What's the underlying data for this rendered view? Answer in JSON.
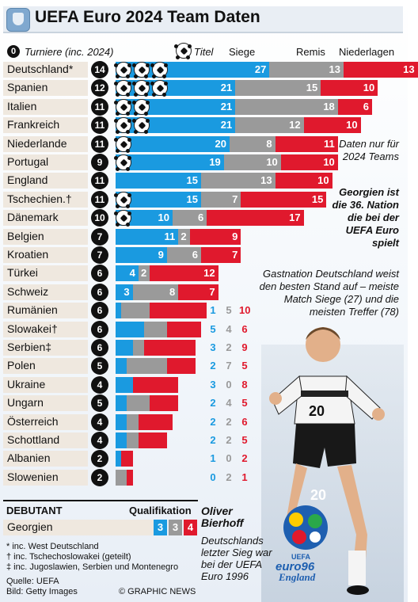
{
  "title": "UEFA Euro 2024 Team Daten",
  "header": {
    "tournaments_badge": "0",
    "tournaments_label": "Turniere (inc. 2024)",
    "titles_label": "Titel",
    "wins_label": "Siege",
    "draws_label": "Remis",
    "losses_label": "Niederlagen"
  },
  "colors": {
    "wins": "#1a9ae0",
    "draws": "#9a9a9a",
    "losses": "#e0192d",
    "label_bg": "#efe8df"
  },
  "chart_data": {
    "type": "bar",
    "stacked": true,
    "orientation": "horizontal",
    "title": "UEFA Euro 2024 Team Daten",
    "series_names": [
      "Siege",
      "Remis",
      "Niederlagen"
    ],
    "teams": [
      {
        "name": "Deutschland*",
        "tournaments": 14,
        "titles": 3,
        "wins": 27,
        "draws": 13,
        "losses": 13
      },
      {
        "name": "Spanien",
        "tournaments": 12,
        "titles": 3,
        "wins": 21,
        "draws": 15,
        "losses": 10
      },
      {
        "name": "Italien",
        "tournaments": 11,
        "titles": 2,
        "wins": 21,
        "draws": 18,
        "losses": 6
      },
      {
        "name": "Frankreich",
        "tournaments": 11,
        "titles": 2,
        "wins": 21,
        "draws": 12,
        "losses": 10
      },
      {
        "name": "Niederlande",
        "tournaments": 11,
        "titles": 1,
        "wins": 20,
        "draws": 8,
        "losses": 11
      },
      {
        "name": "Portugal",
        "tournaments": 9,
        "titles": 1,
        "wins": 19,
        "draws": 10,
        "losses": 10
      },
      {
        "name": "England",
        "tournaments": 11,
        "titles": 0,
        "wins": 15,
        "draws": 13,
        "losses": 10
      },
      {
        "name": "Tschechien.†",
        "tournaments": 11,
        "titles": 1,
        "wins": 15,
        "draws": 7,
        "losses": 15
      },
      {
        "name": "Dänemark",
        "tournaments": 10,
        "titles": 1,
        "wins": 10,
        "draws": 6,
        "losses": 17
      },
      {
        "name": "Belgien",
        "tournaments": 7,
        "titles": 0,
        "wins": 11,
        "draws": 2,
        "losses": 9
      },
      {
        "name": "Kroatien",
        "tournaments": 7,
        "titles": 0,
        "wins": 9,
        "draws": 6,
        "losses": 7
      },
      {
        "name": "Türkei",
        "tournaments": 6,
        "titles": 0,
        "wins": 4,
        "draws": 2,
        "losses": 12
      },
      {
        "name": "Schweiz",
        "tournaments": 6,
        "titles": 0,
        "wins": 3,
        "draws": 8,
        "losses": 7
      },
      {
        "name": "Rumänien",
        "tournaments": 6,
        "titles": 0,
        "wins": 1,
        "draws": 5,
        "losses": 10
      },
      {
        "name": "Slowakei†",
        "tournaments": 6,
        "titles": 0,
        "wins": 5,
        "draws": 4,
        "losses": 6
      },
      {
        "name": "Serbien‡",
        "tournaments": 6,
        "titles": 0,
        "wins": 3,
        "draws": 2,
        "losses": 9
      },
      {
        "name": "Polen",
        "tournaments": 5,
        "titles": 0,
        "wins": 2,
        "draws": 7,
        "losses": 5
      },
      {
        "name": "Ukraine",
        "tournaments": 4,
        "titles": 0,
        "wins": 3,
        "draws": 0,
        "losses": 8
      },
      {
        "name": "Ungarn",
        "tournaments": 5,
        "titles": 0,
        "wins": 2,
        "draws": 4,
        "losses": 5
      },
      {
        "name": "Österreich",
        "tournaments": 4,
        "titles": 0,
        "wins": 2,
        "draws": 2,
        "losses": 6
      },
      {
        "name": "Schottland",
        "tournaments": 4,
        "titles": 0,
        "wins": 2,
        "draws": 2,
        "losses": 5
      },
      {
        "name": "Albanien",
        "tournaments": 2,
        "titles": 0,
        "wins": 1,
        "draws": 0,
        "losses": 2
      },
      {
        "name": "Slowenien",
        "tournaments": 2,
        "titles": 0,
        "wins": 0,
        "draws": 2,
        "losses": 1
      }
    ],
    "debutant": {
      "heading": "DEBUTANT",
      "qualification_label": "Qualifikation",
      "name": "Georgien",
      "wins": 3,
      "draws": 3,
      "losses": 4
    }
  },
  "notes": {
    "daten": "Daten nur für 2024 Teams",
    "georgien": "Georgien ist die 36. Nation die bei der UEFA Euro spielt",
    "gastnation": "Gastnation Deutschland weist den besten Stand auf – meiste Match Siege (27) und die meisten Treffer (78)",
    "player_name": "Oliver Bierhoff",
    "player_caption": "Deutschlands letzter Sieg war bei der UEFA Euro 1996"
  },
  "footnotes": {
    "f1": "* inc. West Deutschland",
    "f2": "† inc. Tschechoslowakei (geteilt)",
    "f3": "‡ inc. Jugoslawien, Serbien und Montenegro",
    "source": "Quelle: UEFA",
    "photo": "Bild: Getty Images",
    "credit": "© GRAPHIC NEWS"
  },
  "euro96": {
    "line1": "UEFA",
    "line2": "euro96",
    "line3": "England"
  }
}
